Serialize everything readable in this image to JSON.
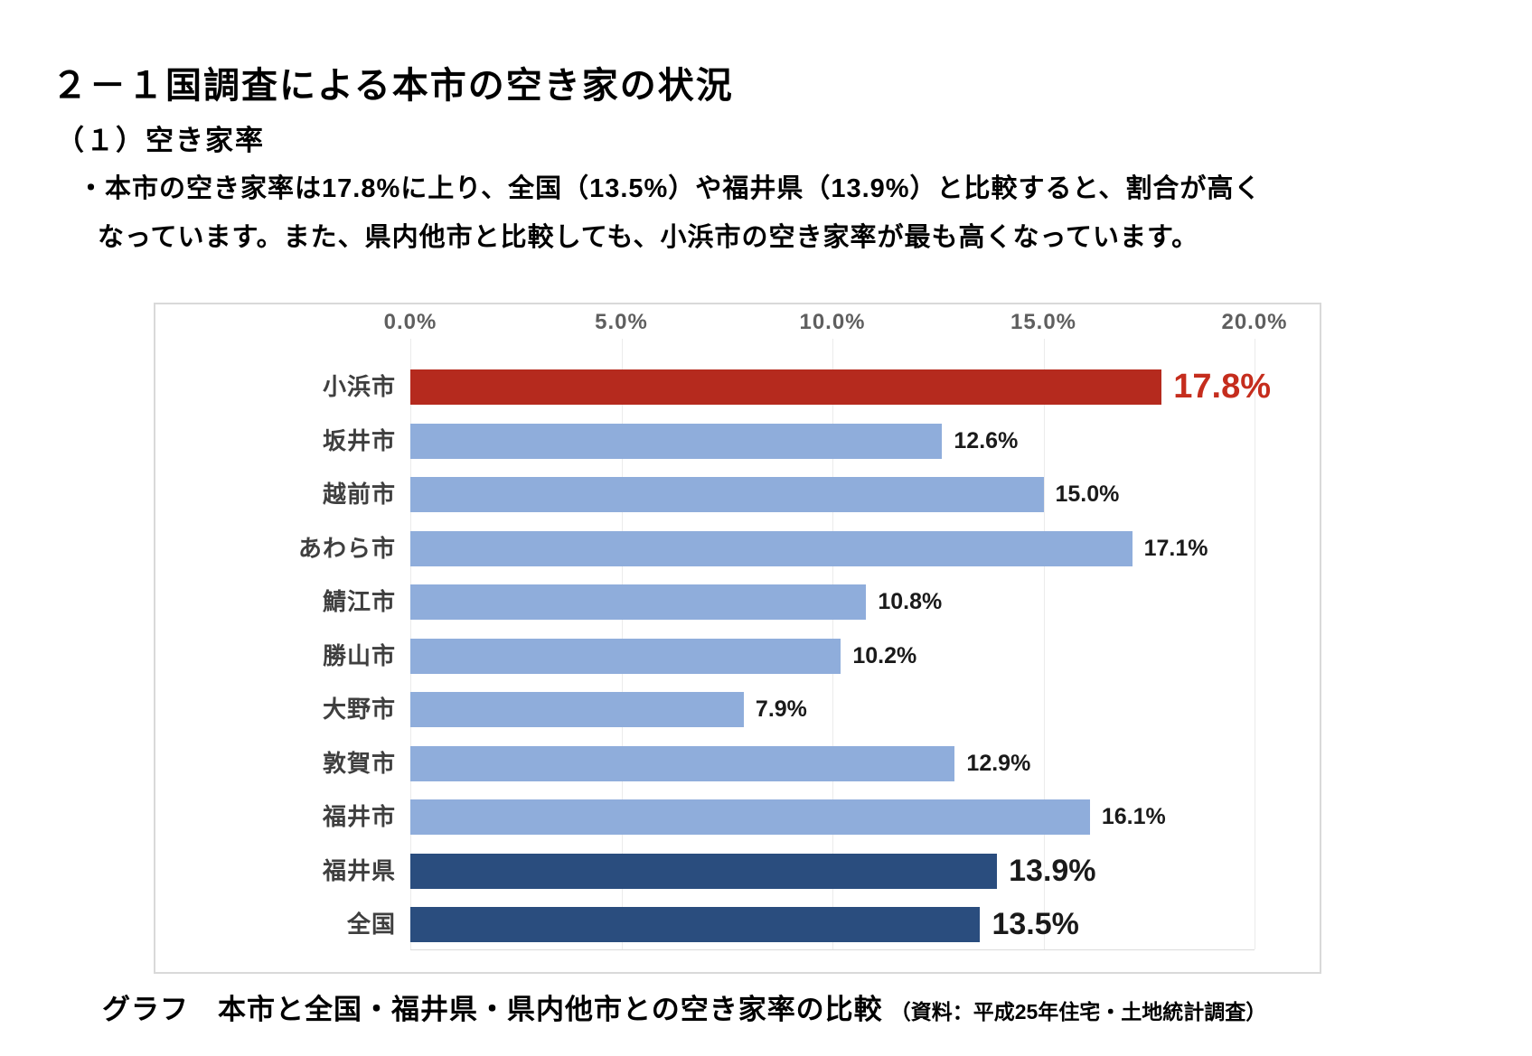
{
  "page": {
    "title": "２－１国調査による本市の空き家の状況",
    "subtitle": "（１）空き家率",
    "bullet": {
      "marker": "・",
      "line1": "本市の空き家率は17.8%に上り、全国（13.5%）や福井県（13.9%）と比較すると、割合が高く",
      "line2": "なっています。また、県内他市と比較しても、小浜市の空き家率が最も高くなっています。"
    },
    "caption": {
      "main": "グラフ　本市と全国・福井県・県内他市との空き家率の比較",
      "source": "（資料：平成25年住宅・土地統計調査）"
    }
  },
  "chart_data": {
    "type": "bar",
    "orientation": "horizontal",
    "title": "",
    "xlabel": "",
    "ylabel": "",
    "categories": [
      "小浜市",
      "坂井市",
      "越前市",
      "あわら市",
      "鯖江市",
      "勝山市",
      "大野市",
      "敦賀市",
      "福井市",
      "福井県",
      "全国"
    ],
    "values": [
      17.8,
      12.6,
      15.0,
      17.1,
      10.8,
      10.2,
      7.9,
      12.9,
      16.1,
      13.9,
      13.5
    ],
    "value_labels": [
      "17.8%",
      "12.6%",
      "15.0%",
      "17.1%",
      "10.8%",
      "10.2%",
      "7.9%",
      "12.9%",
      "16.1%",
      "13.9%",
      "13.5%"
    ],
    "bar_colors": [
      "#b52a1e",
      "#8faddb",
      "#8faddb",
      "#8faddb",
      "#8faddb",
      "#8faddb",
      "#8faddb",
      "#8faddb",
      "#8faddb",
      "#2a4d7e",
      "#2a4d7e"
    ],
    "label_styles": [
      "highlight",
      "normal",
      "normal",
      "normal",
      "normal",
      "normal",
      "normal",
      "normal",
      "normal",
      "big",
      "big"
    ],
    "highlight_category": "小浜市",
    "x_axis": {
      "position": "top",
      "min": 0,
      "max": 20,
      "ticks": [
        "0.0%",
        "5.0%",
        "10.0%",
        "15.0%",
        "20.0%"
      ]
    },
    "grid": true,
    "legend": false,
    "palette": {
      "highlight_red": "#b52a1e",
      "city_blue": "#8faddb",
      "reference_navy": "#2a4d7e",
      "value_label_red": "#c52d1d",
      "chart_border_gray": "#d9d9d9"
    }
  }
}
